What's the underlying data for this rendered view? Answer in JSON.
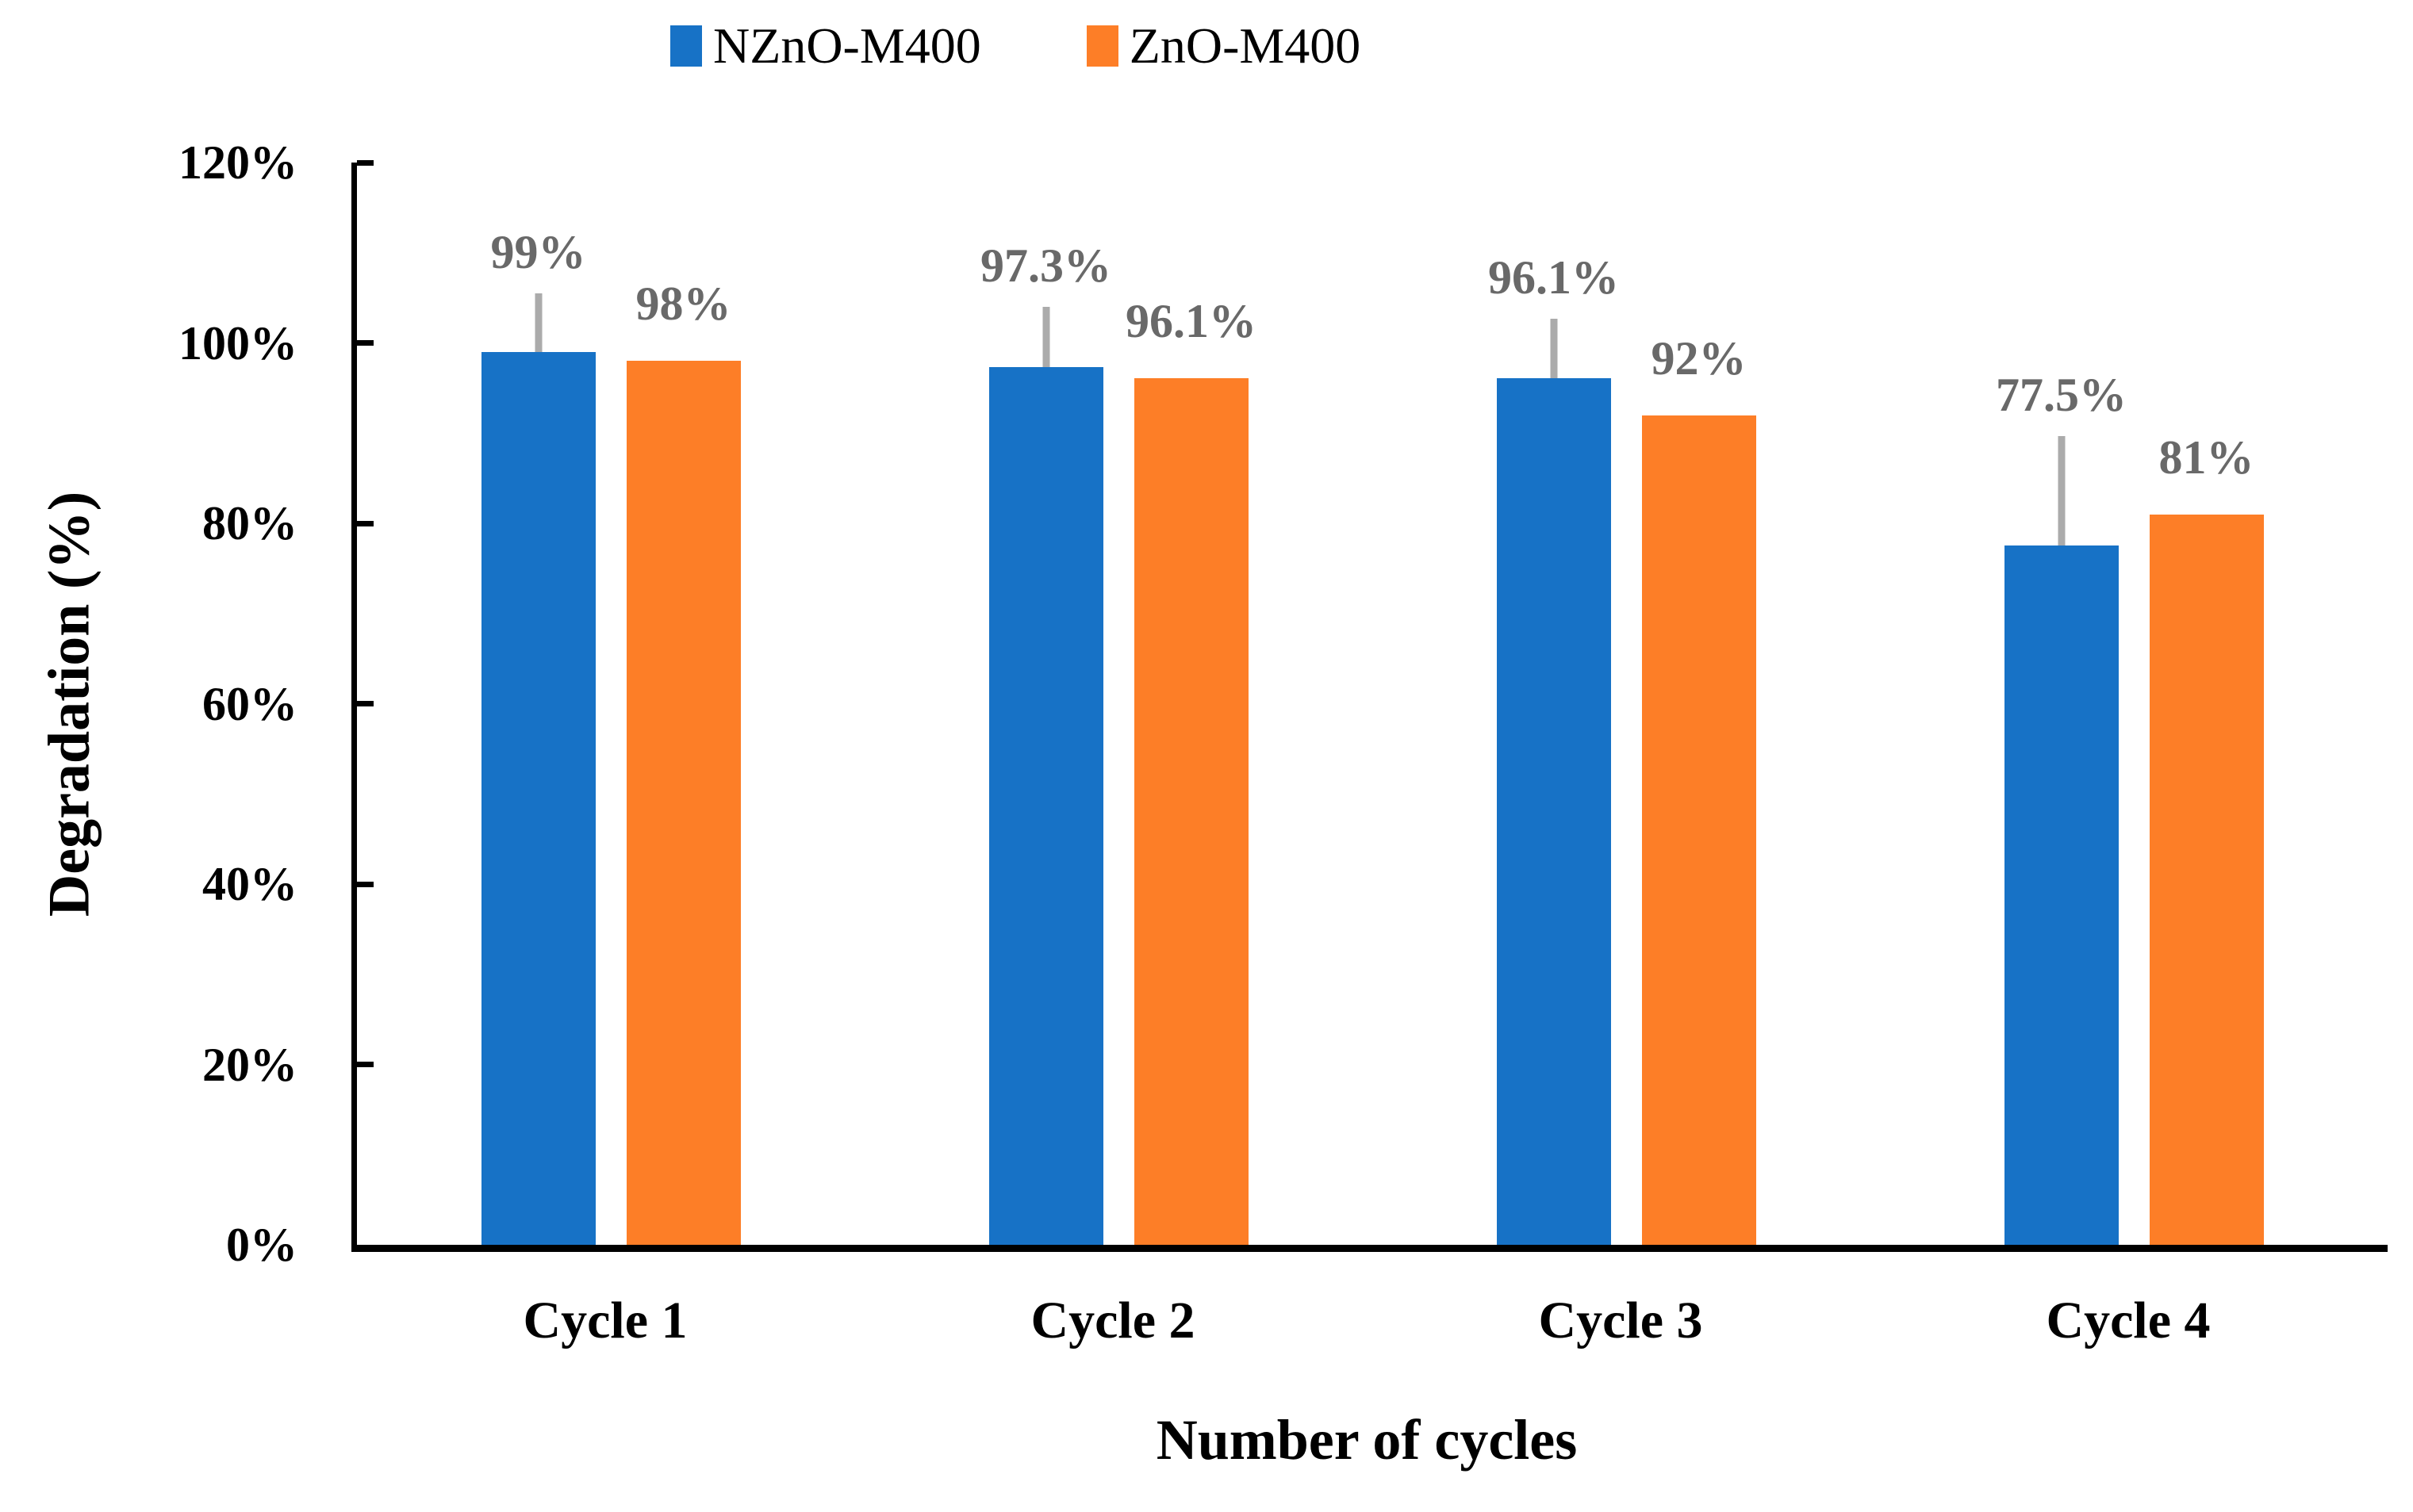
{
  "chart_data": {
    "type": "bar",
    "title": "",
    "categories": [
      "Cycle 1",
      "Cycle 2",
      "Cycle 3",
      "Cycle 4"
    ],
    "series": [
      {
        "name": "NZnO-M400",
        "color": "#1772C6",
        "values": [
          99,
          97.3,
          96.1,
          77.5
        ],
        "labels": [
          "99%",
          "97.3%",
          "96.1%",
          "77.5%"
        ],
        "error_plus": [
          6.5,
          6.7,
          6.6,
          12.2
        ]
      },
      {
        "name": "ZnO-M400",
        "color": "#FD7E27",
        "values": [
          98,
          96.1,
          92,
          81
        ],
        "labels": [
          "98%",
          "96.1%",
          "92%",
          "81%"
        ],
        "error_plus": [
          0,
          0,
          0,
          0
        ]
      }
    ],
    "xlabel": "Number of cycles",
    "ylabel": "Degradation (%)",
    "ylim": [
      0,
      120
    ],
    "ytick_step": 20,
    "ytick_labels": [
      "0%",
      "20%",
      "40%",
      "60%",
      "80%",
      "100%",
      "120%"
    ],
    "grid": false,
    "legend_position": "top-center",
    "colors": {
      "error_bar": "#ABABAB",
      "data_label": "#696969",
      "axis": "#000000"
    }
  }
}
